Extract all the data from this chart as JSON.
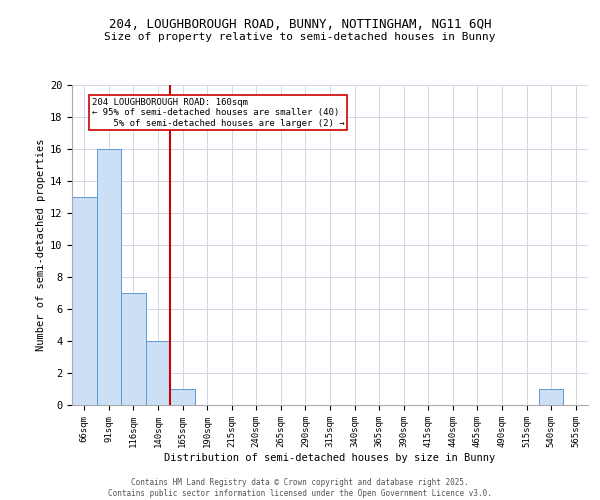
{
  "title_line1": "204, LOUGHBOROUGH ROAD, BUNNY, NOTTINGHAM, NG11 6QH",
  "title_line2": "Size of property relative to semi-detached houses in Bunny",
  "xlabel": "Distribution of semi-detached houses by size in Bunny",
  "ylabel": "Number of semi-detached properties",
  "categories": [
    "66sqm",
    "91sqm",
    "116sqm",
    "140sqm",
    "165sqm",
    "190sqm",
    "215sqm",
    "240sqm",
    "265sqm",
    "290sqm",
    "315sqm",
    "340sqm",
    "365sqm",
    "390sqm",
    "415sqm",
    "440sqm",
    "465sqm",
    "490sqm",
    "515sqm",
    "540sqm",
    "565sqm"
  ],
  "values": [
    13,
    16,
    7,
    4,
    1,
    0,
    0,
    0,
    0,
    0,
    0,
    0,
    0,
    0,
    0,
    0,
    0,
    0,
    0,
    1,
    0
  ],
  "bar_color": "#cce0f5",
  "bar_edge_color": "#5b9bd5",
  "vline_x_idx": 3.5,
  "vline_color": "#cc0000",
  "annotation_text": "204 LOUGHBOROUGH ROAD: 160sqm\n← 95% of semi-detached houses are smaller (40)\n    5% of semi-detached houses are larger (2) →",
  "annotation_box_edge": "#cc0000",
  "ylim": [
    0,
    20
  ],
  "yticks": [
    0,
    2,
    4,
    6,
    8,
    10,
    12,
    14,
    16,
    18,
    20
  ],
  "footer_line1": "Contains HM Land Registry data © Crown copyright and database right 2025.",
  "footer_line2": "Contains public sector information licensed under the Open Government Licence v3.0.",
  "bg_color": "#ffffff",
  "grid_color": "#d0d8e8"
}
